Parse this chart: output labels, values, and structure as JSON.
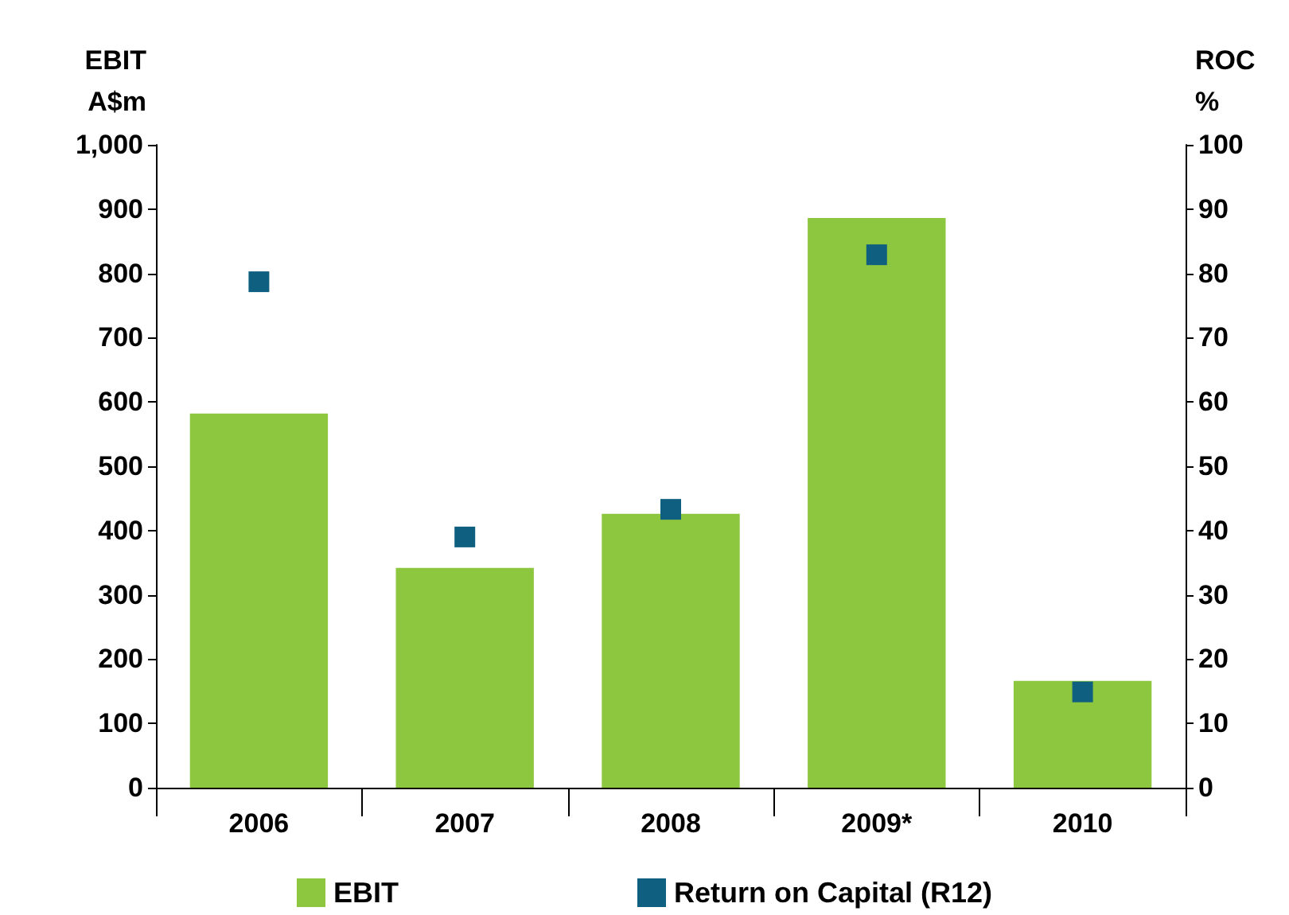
{
  "chart_data": {
    "type": "bar",
    "ylabel": "EBIT\nA$m",
    "y2label": "ROC\n%",
    "categories": [
      "2006",
      "2007",
      "2008",
      "2009*",
      "2010"
    ],
    "series": [
      {
        "name": "EBIT",
        "color": "#8dc63f",
        "values": [
          582,
          342,
          426,
          886,
          166
        ]
      },
      {
        "name": "Return on Capital (R12)",
        "type": "scatter",
        "axis": "y2",
        "marker": "square",
        "color": "#0e5f80",
        "values": [
          78.7,
          39,
          43.3,
          82.9,
          14.9
        ]
      }
    ],
    "ylim": [
      0,
      1000
    ],
    "yticks": [
      0,
      100,
      200,
      300,
      400,
      500,
      600,
      700,
      800,
      900,
      {
        "value": 1000,
        "label": "1,000"
      }
    ],
    "y2lim": [
      0,
      100
    ],
    "y2ticks": [
      0,
      10,
      20,
      30,
      40,
      50,
      60,
      70,
      80,
      90,
      100
    ],
    "grid": false,
    "legend": "bottom"
  }
}
